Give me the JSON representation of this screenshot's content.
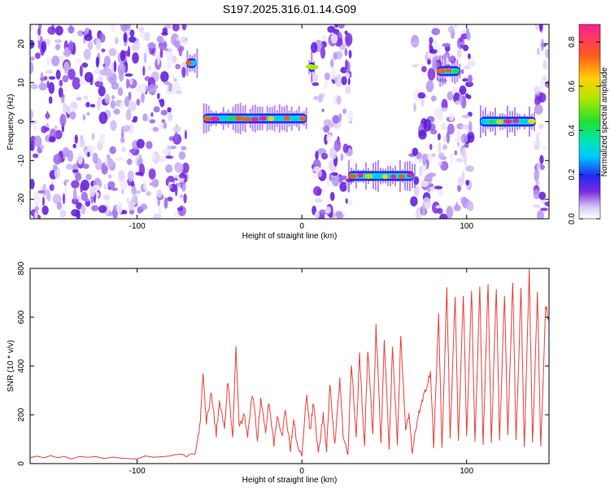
{
  "title": "S197.2025.316.01.14.G09",
  "chart_data": [
    {
      "type": "heatmap",
      "xlabel": "Height of straight line (km)",
      "ylabel": "Frequency (Hz)",
      "xlim": [
        -165,
        150
      ],
      "ylim": [
        -25,
        25
      ],
      "xticks": [
        -100,
        0,
        100
      ],
      "yticks": [
        -20,
        -10,
        0,
        10,
        20
      ],
      "colorbar": {
        "label": "Normalized spectral amplitude",
        "range": [
          0,
          0.88
        ],
        "ticks": [
          0,
          0.2,
          0.4,
          0.6,
          0.8
        ]
      },
      "ridge_segments": [
        {
          "x_start": -60,
          "x_end": 3,
          "freq": 0.8
        },
        {
          "x_start": 28,
          "x_end": 68,
          "freq": -14
        },
        {
          "x_start": 108,
          "x_end": 142,
          "freq": 0
        },
        {
          "x_start": -70,
          "x_end": -64,
          "freq": 15
        },
        {
          "x_start": 4,
          "x_end": 8,
          "freq": 14
        },
        {
          "x_start": 82,
          "x_end": 96,
          "freq": 13
        }
      ],
      "noise_regions": [
        {
          "x_start": -165,
          "x_end": -70
        },
        {
          "x_start": 7,
          "x_end": 30
        },
        {
          "x_start": 67,
          "x_end": 103
        },
        {
          "x_start": 142,
          "x_end": 150
        }
      ]
    },
    {
      "type": "line",
      "xlabel": "Height of straight line (km)",
      "ylabel": "SNR (10 * v/v)",
      "xlim": [
        -165,
        150
      ],
      "ylim": [
        0,
        800
      ],
      "xticks": [
        -100,
        0,
        100
      ],
      "yticks": [
        0,
        200,
        400,
        600,
        800
      ],
      "series": [
        {
          "name": "SNR",
          "color": "#e8413a",
          "x": [
            -165,
            -140,
            -110,
            -80,
            -65,
            -62,
            -60,
            -58,
            -55,
            -52,
            -50,
            -47,
            -45,
            -42,
            -40,
            -38,
            -35,
            -33,
            -30,
            -27,
            -25,
            -22,
            -20,
            -17,
            -15,
            -12,
            -10,
            -7,
            -5,
            -3,
            0,
            3,
            5,
            7,
            10,
            13,
            15,
            17,
            20,
            23,
            25,
            28,
            30,
            33,
            35,
            38,
            40,
            43,
            45,
            48,
            50,
            53,
            55,
            58,
            60,
            63,
            65,
            67,
            70,
            73,
            75,
            78,
            80,
            83,
            85,
            88,
            90,
            93,
            95,
            98,
            100,
            103,
            105,
            108,
            110,
            113,
            115,
            118,
            120,
            123,
            125,
            128,
            130,
            133,
            135,
            138,
            140,
            143,
            145,
            148,
            150
          ],
          "y": [
            25,
            25,
            25,
            25,
            40,
            150,
            360,
            170,
            290,
            120,
            260,
            140,
            340,
            110,
            480,
            140,
            200,
            120,
            290,
            100,
            270,
            130,
            250,
            80,
            200,
            120,
            220,
            60,
            180,
            80,
            30,
            290,
            130,
            250,
            40,
            200,
            60,
            320,
            80,
            350,
            120,
            40,
            410,
            110,
            450,
            70,
            470,
            120,
            560,
            90,
            500,
            70,
            480,
            80,
            520,
            140,
            200,
            40,
            180,
            250,
            300,
            380,
            70,
            610,
            60,
            720,
            100,
            690,
            80,
            700,
            110,
            720,
            90,
            720,
            70,
            740,
            80,
            720,
            100,
            700,
            120,
            750,
            90,
            720,
            60,
            790,
            80,
            710,
            60,
            650,
            580
          ]
        }
      ]
    }
  ]
}
